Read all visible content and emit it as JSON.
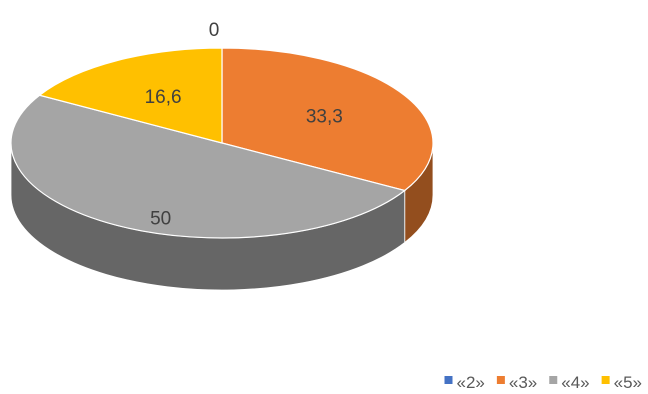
{
  "chart_data": {
    "type": "pie",
    "style": "3d",
    "categories": [
      "«2»",
      "«3»",
      "«4»",
      "«5»"
    ],
    "values": [
      0,
      33.3,
      50,
      16.6
    ],
    "data_labels": [
      "0",
      "33,3",
      "50",
      "16,6"
    ],
    "colors": [
      "#4472c4",
      "#ed7d31",
      "#a5a5a5",
      "#ffc000"
    ],
    "legend_position": "bottom-right",
    "title": ""
  }
}
